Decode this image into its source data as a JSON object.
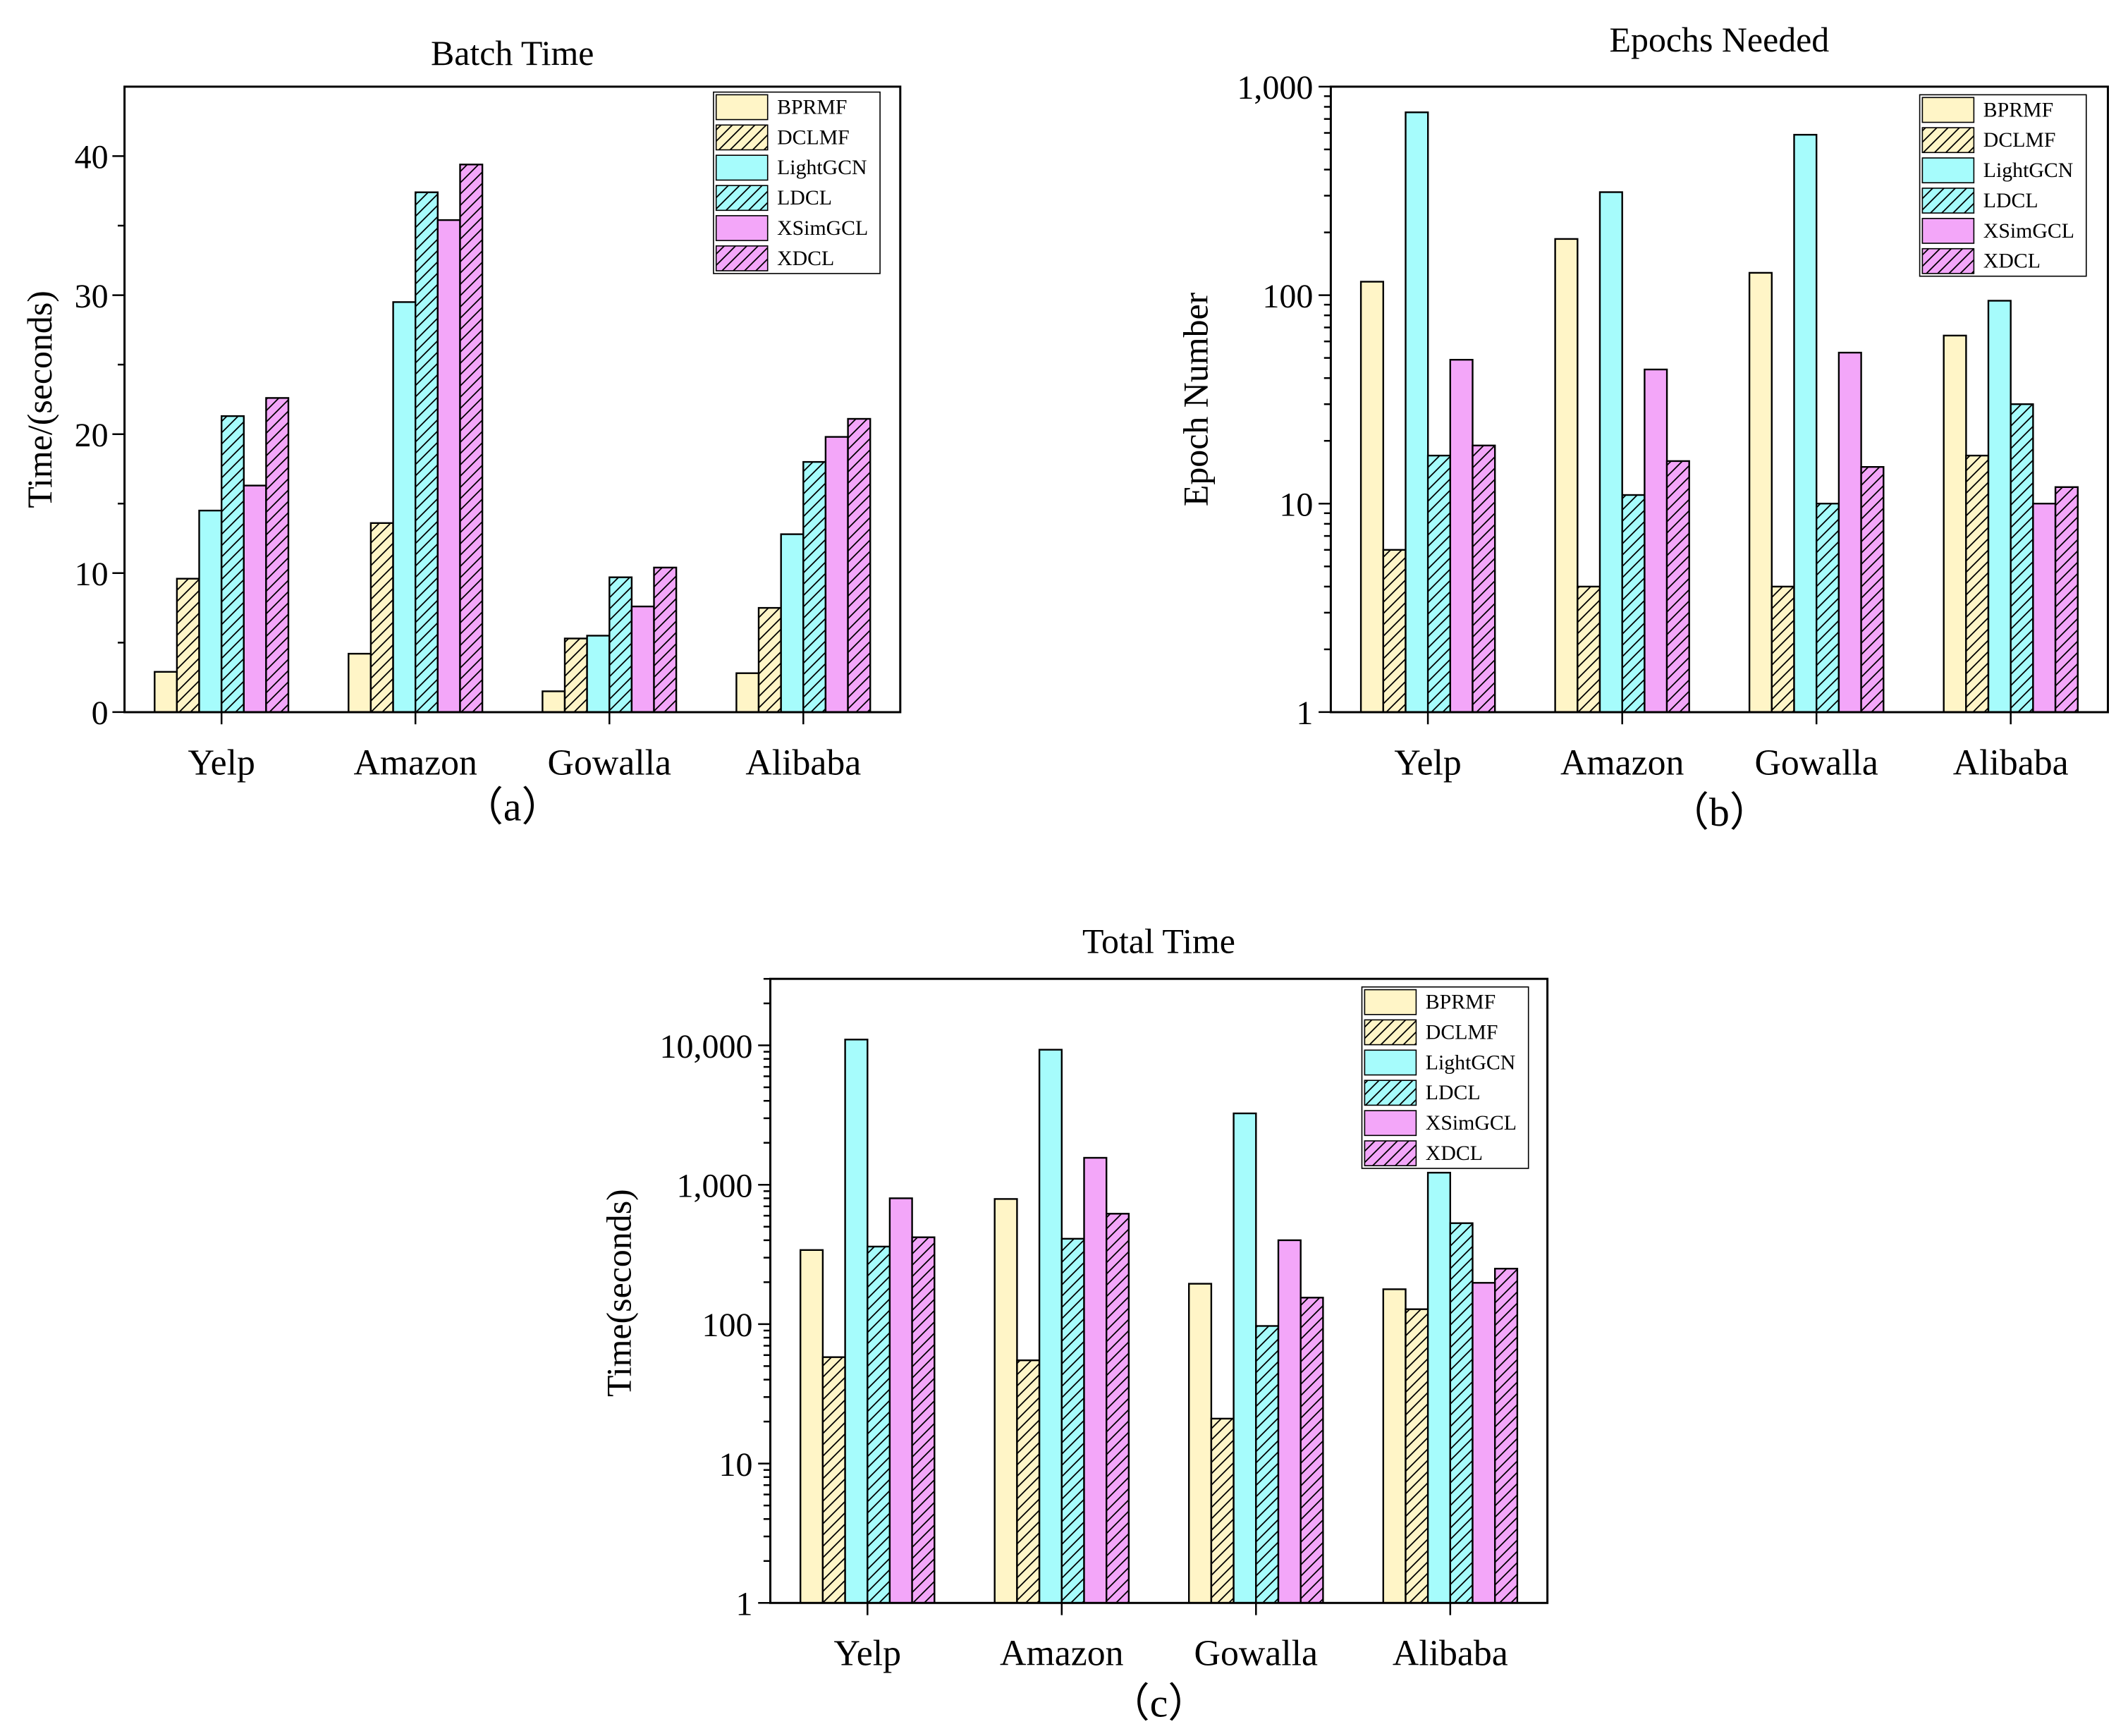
{
  "legend_labels": [
    "BPRMF",
    "DCLMF",
    "LightGCN",
    "LDCL",
    "XSimGCL",
    "XDCL"
  ],
  "colors": {
    "BPRMF": "#fff5c7",
    "DCLMF": "#fff5c7",
    "LightGCN": "#a6fcfc",
    "LDCL": "#a6fcfc",
    "XSimGCL": "#f3a6f9",
    "XDCL": "#f3a6f9"
  },
  "hatched": [
    false,
    true,
    false,
    true,
    false,
    true
  ],
  "chart_data": [
    {
      "id": "a",
      "type": "bar",
      "title": "Batch Time",
      "xlabel": "",
      "ylabel": "Time/(seconds)",
      "sublabel": "（a）",
      "scale": "linear",
      "ylim": [
        0,
        45
      ],
      "yticks": [
        0,
        10,
        20,
        30,
        40
      ],
      "ytick_labels": [
        "0",
        "10",
        "20",
        "30",
        "40"
      ],
      "categories": [
        "Yelp",
        "Amazon",
        "Gowalla",
        "Alibaba"
      ],
      "legend_position": "top-right",
      "series": [
        {
          "name": "BPRMF",
          "values": [
            2.9,
            4.2,
            1.5,
            2.8
          ]
        },
        {
          "name": "DCLMF",
          "values": [
            9.6,
            13.6,
            5.3,
            7.5
          ]
        },
        {
          "name": "LightGCN",
          "values": [
            14.5,
            29.5,
            5.5,
            12.8
          ]
        },
        {
          "name": "LDCL",
          "values": [
            21.3,
            37.4,
            9.7,
            18.0
          ]
        },
        {
          "name": "XSimGCL",
          "values": [
            16.3,
            35.4,
            7.6,
            19.8
          ]
        },
        {
          "name": "XDCL",
          "values": [
            22.6,
            39.4,
            10.4,
            21.1
          ]
        }
      ]
    },
    {
      "id": "b",
      "type": "bar",
      "title": "Epochs Needed",
      "xlabel": "",
      "ylabel": "Epoch Number",
      "sublabel": "（b）",
      "scale": "log",
      "ylim": [
        1,
        1000
      ],
      "yticks": [
        1,
        10,
        100,
        1000
      ],
      "ytick_labels": [
        "1",
        "10",
        "100",
        "1,000"
      ],
      "categories": [
        "Yelp",
        "Amazon",
        "Gowalla",
        "Alibaba"
      ],
      "legend_position": "top-right",
      "series": [
        {
          "name": "BPRMF",
          "values": [
            116,
            186,
            128,
            64
          ]
        },
        {
          "name": "DCLMF",
          "values": [
            6,
            4,
            4,
            17
          ]
        },
        {
          "name": "LightGCN",
          "values": [
            753,
            312,
            588,
            94
          ]
        },
        {
          "name": "LDCL",
          "values": [
            17,
            11,
            10,
            30
          ]
        },
        {
          "name": "XSimGCL",
          "values": [
            49,
            44,
            53,
            10
          ]
        },
        {
          "name": "XDCL",
          "values": [
            19,
            16,
            15,
            12
          ]
        }
      ]
    },
    {
      "id": "c",
      "type": "bar",
      "title": "Total Time",
      "xlabel": "",
      "ylabel": "Time(seconds)",
      "sublabel": "（c）",
      "scale": "log",
      "ylim": [
        1,
        30000
      ],
      "yticks": [
        1,
        10,
        100,
        1000,
        10000
      ],
      "ytick_labels": [
        "1",
        "10",
        "100",
        "1,000",
        "10,000"
      ],
      "categories": [
        "Yelp",
        "Amazon",
        "Gowalla",
        "Alibaba"
      ],
      "legend_position": "top-right",
      "series": [
        {
          "name": "BPRMF",
          "values": [
            340,
            790,
            195,
            178
          ]
        },
        {
          "name": "DCLMF",
          "values": [
            58,
            55,
            21,
            128
          ]
        },
        {
          "name": "LightGCN",
          "values": [
            11000,
            9300,
            3250,
            1220
          ]
        },
        {
          "name": "LDCL",
          "values": [
            360,
            410,
            97,
            530
          ]
        },
        {
          "name": "XSimGCL",
          "values": [
            800,
            1560,
            400,
            198
          ]
        },
        {
          "name": "XDCL",
          "values": [
            420,
            620,
            155,
            250
          ]
        }
      ]
    }
  ]
}
